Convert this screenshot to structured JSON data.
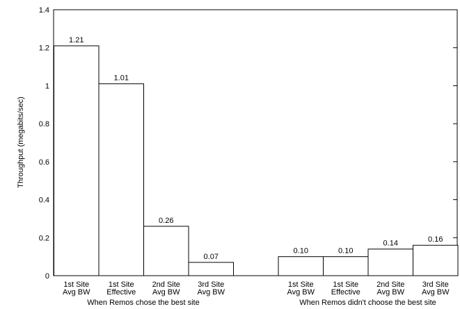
{
  "chart_data": {
    "type": "bar",
    "title": "",
    "ylabel": "Throughput (megabits/sec)",
    "ylim": [
      0,
      1.4
    ],
    "yticks": [
      "0",
      "0.2",
      "0.4",
      "0.6",
      "0.8",
      "1",
      "1.2",
      "1.4"
    ],
    "grid": false,
    "groups": [
      {
        "label": "When Remos chose the best site",
        "bars": [
          {
            "category": [
              "1st Site",
              "Avg BW"
            ],
            "value": 1.21,
            "value_label": "1.21"
          },
          {
            "category": [
              "1st Site",
              "Effective"
            ],
            "value": 1.01,
            "value_label": "1.01"
          },
          {
            "category": [
              "2nd Site",
              "Avg BW"
            ],
            "value": 0.26,
            "value_label": "0.26"
          },
          {
            "category": [
              "3rd Site",
              "Avg BW"
            ],
            "value": 0.07,
            "value_label": "0.07"
          }
        ]
      },
      {
        "label": "When Remos didn't choose the best site",
        "bars": [
          {
            "category": [
              "1st Site",
              "Avg BW"
            ],
            "value": 0.1,
            "value_label": "0.10"
          },
          {
            "category": [
              "1st Site",
              "Effective"
            ],
            "value": 0.1,
            "value_label": "0.10"
          },
          {
            "category": [
              "2nd Site",
              "Avg BW"
            ],
            "value": 0.14,
            "value_label": "0.14"
          },
          {
            "category": [
              "3rd Site",
              "Avg BW"
            ],
            "value": 0.16,
            "value_label": "0.16"
          }
        ]
      }
    ]
  }
}
